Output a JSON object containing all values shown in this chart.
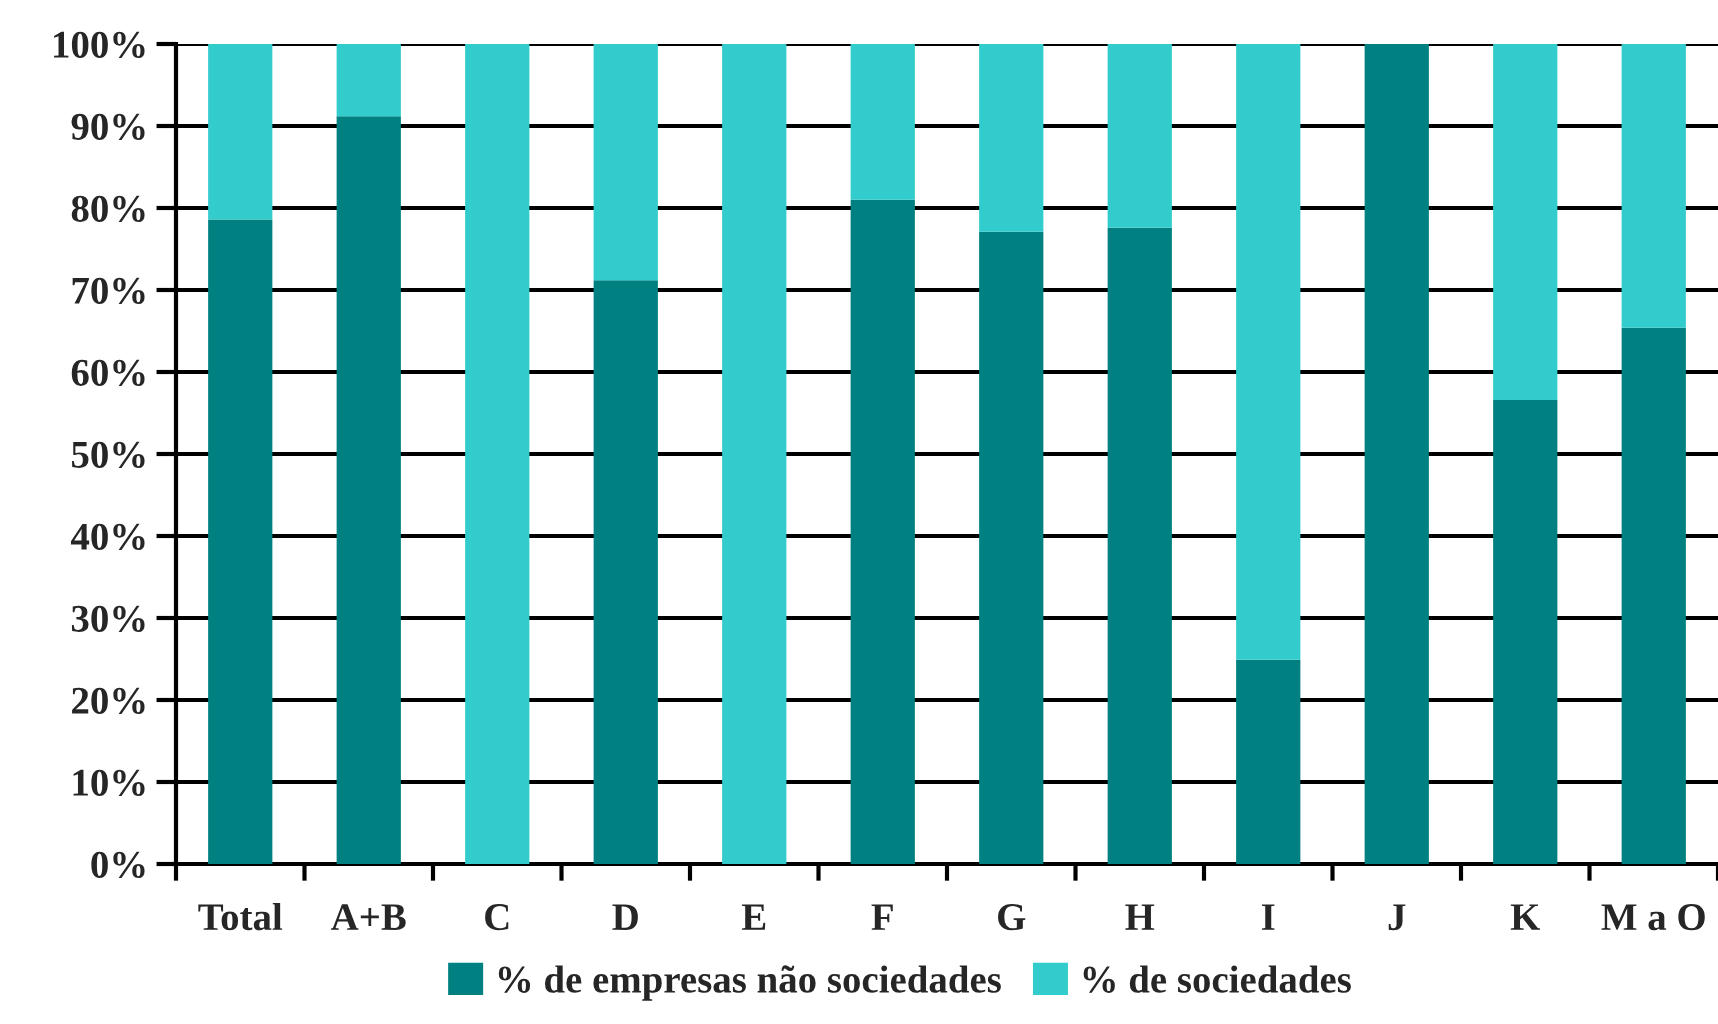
{
  "chart_data": {
    "type": "bar",
    "stacked": true,
    "categories": [
      "Total",
      "A+B",
      "C",
      "D",
      "E",
      "F",
      "G",
      "H",
      "I",
      "J",
      "K",
      "M a O"
    ],
    "series": [
      {
        "name": "% de empresas não sociedades",
        "color": "#008080",
        "values": [
          78.6,
          91.2,
          0,
          71.2,
          0,
          81.0,
          77.1,
          77.6,
          24.9,
          100,
          56.6,
          65.4
        ]
      },
      {
        "name": "% de sociedades",
        "color": "#33cccc",
        "values": [
          21.4,
          8.8,
          100,
          28.8,
          100,
          19.0,
          22.9,
          22.4,
          75.1,
          0,
          43.4,
          34.6
        ]
      }
    ],
    "ylim": [
      0,
      100
    ],
    "yticks": [
      {
        "value": 0,
        "label": "0%"
      },
      {
        "value": 10,
        "label": "10%"
      },
      {
        "value": 20,
        "label": "20%"
      },
      {
        "value": 30,
        "label": "30%"
      },
      {
        "value": 40,
        "label": "40%"
      },
      {
        "value": 50,
        "label": "50%"
      },
      {
        "value": 60,
        "label": "60%"
      },
      {
        "value": 70,
        "label": "70%"
      },
      {
        "value": 80,
        "label": "80%"
      },
      {
        "value": 90,
        "label": "90%"
      },
      {
        "value": 100,
        "label": "100%"
      }
    ],
    "grid": "y",
    "legend": "bottom"
  }
}
